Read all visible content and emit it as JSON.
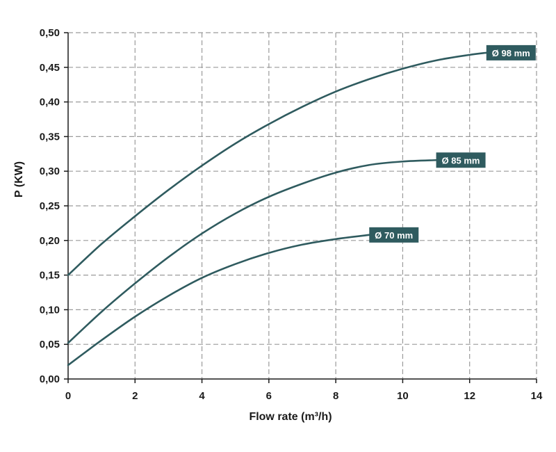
{
  "chart_data": {
    "type": "line",
    "xlabel": "Flow rate (m³/h)",
    "ylabel": "P (KW)",
    "xlim": [
      0,
      14
    ],
    "ylim": [
      0,
      0.5
    ],
    "x_ticks": [
      0,
      2,
      4,
      6,
      8,
      10,
      12,
      14
    ],
    "x_tick_labels": [
      "0",
      "2",
      "4",
      "6",
      "8",
      "10",
      "12",
      "14"
    ],
    "y_ticks": [
      0,
      0.05,
      0.1,
      0.15,
      0.2,
      0.25,
      0.3,
      0.35,
      0.4,
      0.45,
      0.5
    ],
    "y_tick_labels": [
      "0,00",
      "0,05",
      "0,10",
      "0,15",
      "0,20",
      "0,25",
      "0,30",
      "0,35",
      "0,40",
      "0,45",
      "0,50"
    ],
    "grid": true,
    "series_color": "#2f5b5f",
    "grid_color": "#9a9a9a",
    "series": [
      {
        "name": "Ø 98 mm",
        "x": [
          0,
          1,
          2,
          3,
          4,
          5,
          6,
          7,
          8,
          9,
          10,
          11,
          12,
          12.5
        ],
        "y": [
          0.15,
          0.195,
          0.235,
          0.273,
          0.308,
          0.34,
          0.368,
          0.393,
          0.415,
          0.433,
          0.448,
          0.46,
          0.468,
          0.471
        ]
      },
      {
        "name": "Ø 85 mm",
        "x": [
          0,
          1,
          2,
          3,
          4,
          5,
          6,
          7,
          8,
          9,
          10,
          11
        ],
        "y": [
          0.052,
          0.097,
          0.138,
          0.176,
          0.21,
          0.239,
          0.263,
          0.282,
          0.298,
          0.309,
          0.314,
          0.316
        ]
      },
      {
        "name": "Ø 70 mm",
        "x": [
          0,
          1,
          2,
          3,
          4,
          5,
          6,
          7,
          8,
          9
        ],
        "y": [
          0.02,
          0.056,
          0.09,
          0.12,
          0.146,
          0.166,
          0.182,
          0.194,
          0.202,
          0.208
        ]
      }
    ]
  }
}
